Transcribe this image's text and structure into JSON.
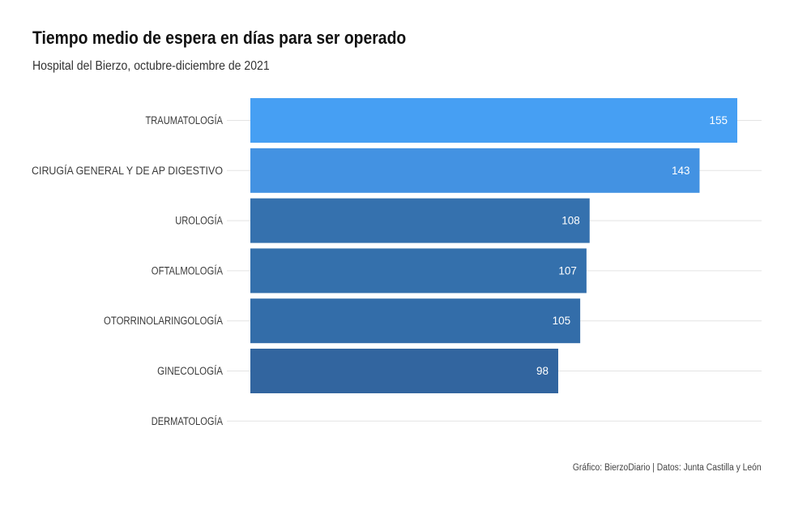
{
  "title": "Tiempo medio de espera en días para ser operado",
  "subtitle": "Hospital del Bierzo, octubre-diciembre de 2021",
  "caption": "Gráfico: BierzoDiario | Datos: Junta Castilla y León",
  "chart_data": {
    "type": "bar",
    "orientation": "horizontal",
    "title": "Tiempo medio de espera en días para ser operado",
    "subtitle": "Hospital del Bierzo, octubre-diciembre de 2021",
    "xlabel": "",
    "ylabel": "",
    "categories": [
      "TRAUMATOLOGÍA",
      "CIRUGÍA GENERAL Y DE AP DIGESTIVO",
      "UROLOGÍA",
      "OFTALMOLOGÍA",
      "OTORRINOLARINGOLOGÍA",
      "GINECOLOGÍA",
      "DERMATOLOGÍA"
    ],
    "values": [
      155,
      143,
      108,
      107,
      105,
      98,
      0
    ],
    "value_labels": [
      "155",
      "143",
      "108",
      "107",
      "105",
      "98",
      ""
    ],
    "colors": [
      "#469ff3",
      "#4392e2",
      "#3571ae",
      "#3470ac",
      "#336da9",
      "#32659f",
      "#32659f"
    ],
    "xlim": [
      0,
      155
    ],
    "grid": "horizontal",
    "legend": "none"
  }
}
